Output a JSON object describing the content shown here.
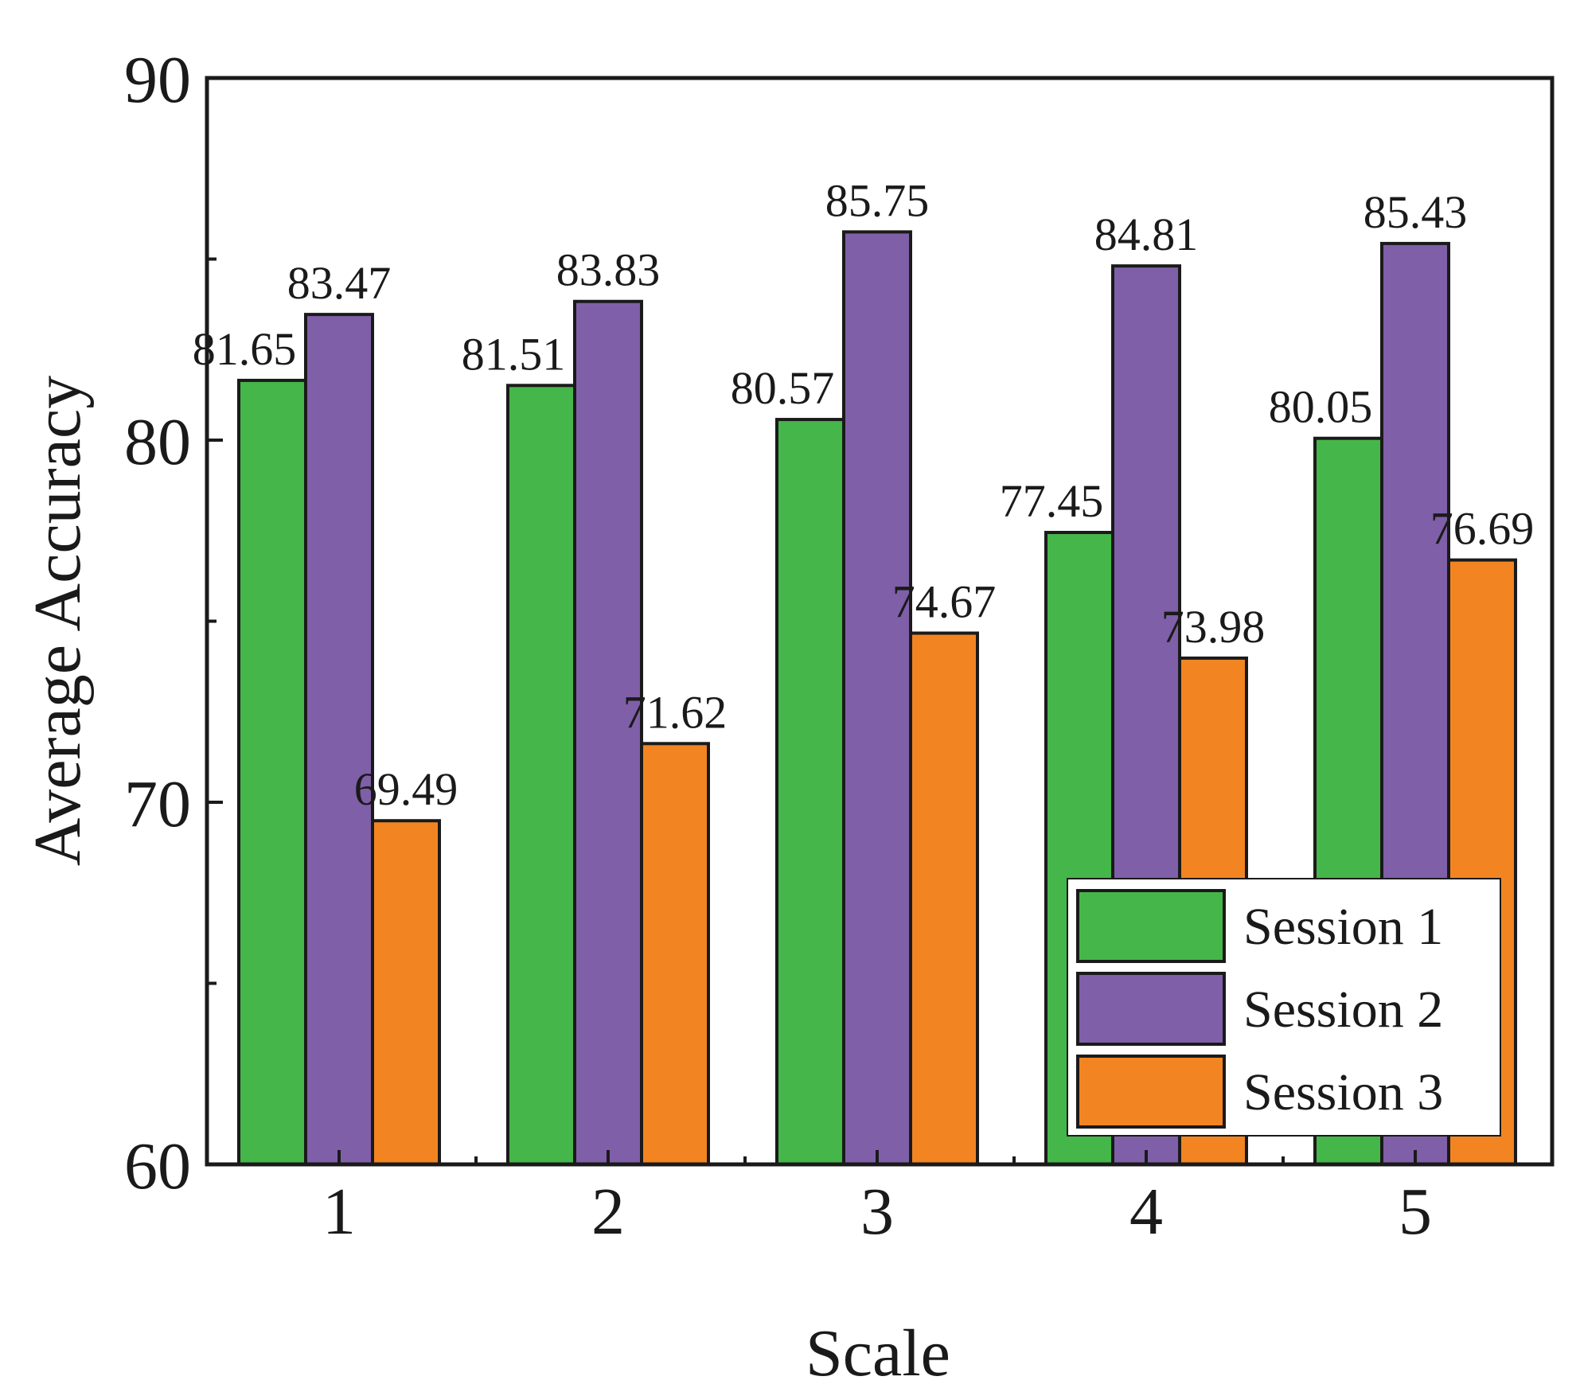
{
  "chart_data": {
    "type": "bar",
    "title": "",
    "xlabel": "Scale",
    "ylabel": "Average Accuracy",
    "categories": [
      "1",
      "2",
      "3",
      "4",
      "5"
    ],
    "ylim": [
      60,
      90
    ],
    "yticks": [
      60,
      70,
      80,
      90
    ],
    "yticks_labels": [
      "60",
      "70",
      "80",
      "90"
    ],
    "series": [
      {
        "name": "Session 1",
        "color": "#45b649",
        "values": [
          81.65,
          81.51,
          80.57,
          77.45,
          80.05
        ],
        "labels": [
          "81.65",
          "81.51",
          "80.57",
          "77.45",
          "80.05"
        ]
      },
      {
        "name": "Session 2",
        "color": "#7f5fa8",
        "values": [
          83.47,
          83.83,
          85.75,
          84.81,
          85.43
        ],
        "labels": [
          "83.47",
          "83.83",
          "85.75",
          "84.81",
          "85.43"
        ]
      },
      {
        "name": "Session 3",
        "color": "#f28522",
        "values": [
          69.49,
          71.62,
          74.67,
          73.98,
          76.69
        ],
        "labels": [
          "69.49",
          "71.62",
          "74.67",
          "73.98",
          "76.69"
        ]
      }
    ],
    "legend_position": "bottom-right",
    "grid": false
  }
}
